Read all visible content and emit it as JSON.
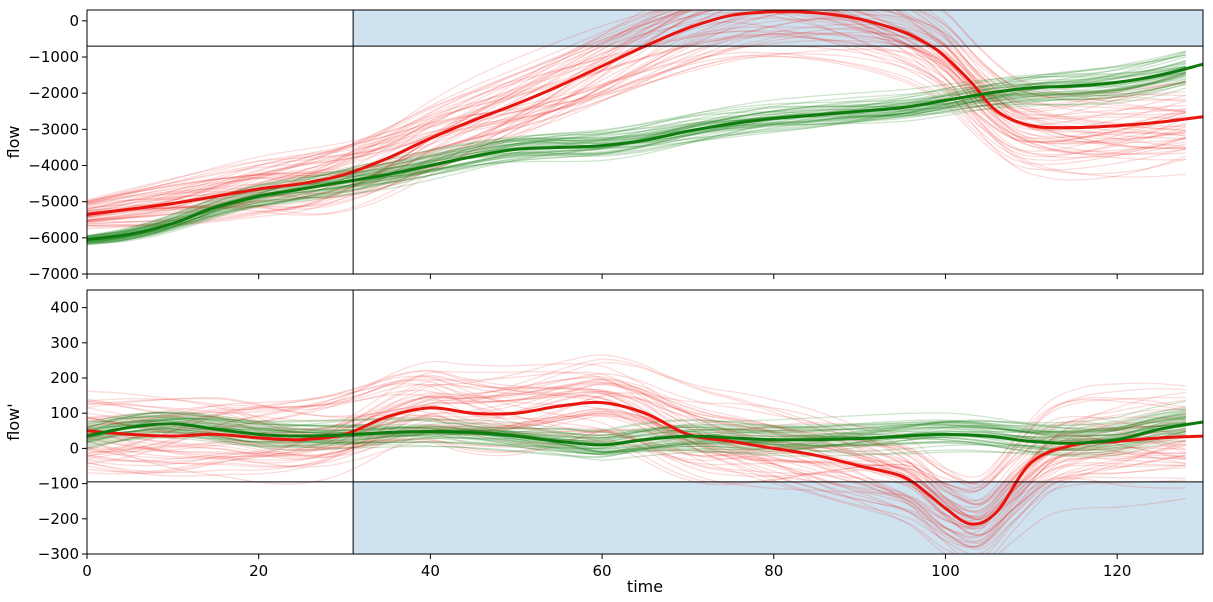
{
  "chart_data": [
    {
      "type": "line",
      "panel": "top",
      "xlabel": "",
      "ylabel": "flow",
      "xlim": [
        0,
        130
      ],
      "ylim": [
        -7000,
        300
      ],
      "yticks": [
        0,
        -1000,
        -2000,
        -3000,
        -4000,
        -5000,
        -6000,
        -7000
      ],
      "vline_x": 31,
      "hline_y": -700,
      "shaded_region": {
        "x": [
          31,
          130
        ],
        "y": [
          -700,
          300
        ],
        "color": "#cfe2ef"
      },
      "series": [
        {
          "color": "#e8150f",
          "x": [
            0,
            10,
            20,
            25,
            30,
            35,
            40,
            45,
            50,
            55,
            60,
            65,
            70,
            75,
            80,
            85,
            90,
            95,
            98,
            100,
            103,
            106,
            110,
            115,
            120,
            125,
            130
          ],
          "values": [
            -5350,
            -5050,
            -4650,
            -4500,
            -4250,
            -3800,
            -3250,
            -2750,
            -2300,
            -1800,
            -1250,
            -700,
            -200,
            150,
            250,
            220,
            50,
            -300,
            -650,
            -1000,
            -1700,
            -2500,
            -2900,
            -2950,
            -2900,
            -2800,
            -2650
          ]
        },
        {
          "color": "#0e7b0e",
          "x": [
            0,
            5,
            10,
            15,
            20,
            25,
            30,
            35,
            40,
            45,
            50,
            55,
            60,
            65,
            70,
            75,
            80,
            85,
            90,
            95,
            100,
            105,
            110,
            115,
            120,
            125,
            130
          ],
          "values": [
            -6050,
            -5900,
            -5600,
            -5150,
            -4850,
            -4650,
            -4450,
            -4250,
            -4000,
            -3750,
            -3550,
            -3500,
            -3450,
            -3300,
            -3050,
            -2850,
            -2700,
            -2600,
            -2500,
            -2400,
            -2200,
            -2000,
            -1850,
            -1800,
            -1700,
            -1500,
            -1200
          ]
        }
      ]
    },
    {
      "type": "line",
      "panel": "bottom",
      "xlabel": "time",
      "ylabel": "flow'",
      "xlim": [
        0,
        130
      ],
      "ylim": [
        -300,
        450
      ],
      "xticks": [
        0,
        20,
        40,
        60,
        80,
        100,
        120
      ],
      "yticks": [
        400,
        300,
        200,
        100,
        0,
        -100,
        -200,
        -300
      ],
      "vline_x": 31,
      "hline_y": -95,
      "shaded_region": {
        "x": [
          31,
          130
        ],
        "y": [
          -300,
          -95
        ],
        "color": "#cfe2ef"
      },
      "series": [
        {
          "color": "#e8150f",
          "x": [
            0,
            5,
            10,
            15,
            20,
            25,
            30,
            35,
            40,
            45,
            50,
            55,
            60,
            65,
            70,
            75,
            80,
            85,
            90,
            95,
            98,
            100,
            103,
            106,
            110,
            115,
            120,
            125,
            130
          ],
          "values": [
            50,
            40,
            35,
            40,
            30,
            25,
            40,
            90,
            115,
            100,
            100,
            120,
            130,
            100,
            40,
            20,
            0,
            -20,
            -50,
            -80,
            -130,
            -170,
            -215,
            -180,
            -40,
            10,
            20,
            30,
            35
          ]
        },
        {
          "color": "#0e7b0e",
          "x": [
            0,
            5,
            10,
            15,
            20,
            25,
            30,
            35,
            40,
            45,
            50,
            55,
            60,
            65,
            70,
            75,
            80,
            85,
            90,
            95,
            100,
            105,
            110,
            115,
            120,
            125,
            130
          ],
          "values": [
            35,
            60,
            70,
            55,
            40,
            35,
            38,
            45,
            48,
            45,
            35,
            20,
            10,
            25,
            35,
            30,
            25,
            25,
            28,
            35,
            40,
            35,
            20,
            15,
            25,
            55,
            75
          ]
        }
      ]
    }
  ]
}
